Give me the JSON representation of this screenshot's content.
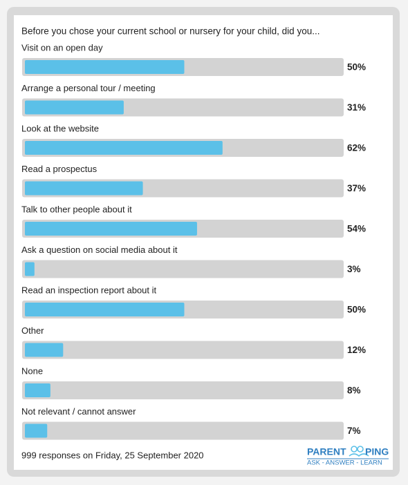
{
  "chart_data": {
    "type": "bar",
    "orientation": "horizontal",
    "title": "Before you chose your current school or nursery for your child, did you...",
    "categories": [
      "Visit on an open day",
      "Arrange a personal tour / meeting",
      "Look at the website",
      "Read a prospectus",
      "Talk to other people about it",
      "Ask a question on social media about it",
      "Read an inspection report about it",
      "Other",
      "None",
      "Not relevant / cannot answer"
    ],
    "values": [
      50,
      31,
      62,
      37,
      54,
      3,
      50,
      12,
      8,
      7
    ],
    "value_labels": [
      "50%",
      "31%",
      "62%",
      "37%",
      "54%",
      "3%",
      "50%",
      "12%",
      "8%",
      "7%"
    ],
    "xlim": [
      0,
      100
    ],
    "color": "#5bc0e8",
    "footer": "999 responses on Friday, 25 September 2020",
    "logo_left": "PARENT",
    "logo_right": "PING",
    "logo_tagline": "ASK - ANSWER - LEARN"
  }
}
